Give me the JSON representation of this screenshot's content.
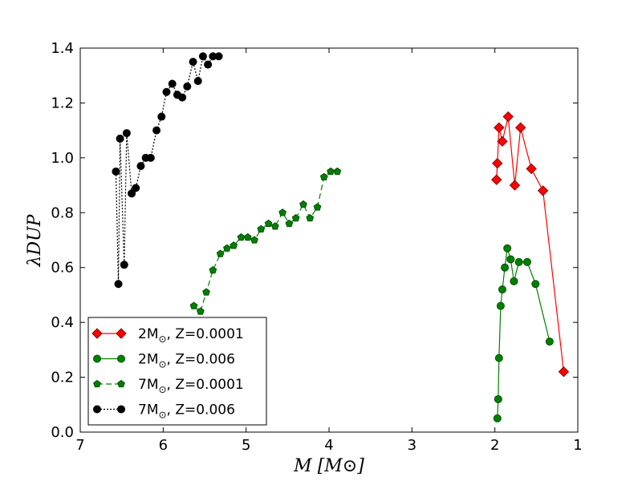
{
  "chart_data": {
    "type": "line",
    "title": "",
    "xlabel": "M [M⊙]",
    "ylabel": "λDUP",
    "xlim": [
      7,
      1
    ],
    "ylim": [
      0.0,
      1.4
    ],
    "xticks": [
      7,
      6,
      5,
      4,
      3,
      2,
      1
    ],
    "xtick_labels": [
      "7",
      "6",
      "5",
      "4",
      "3",
      "2",
      "1"
    ],
    "yticks": [
      0.0,
      0.2,
      0.4,
      0.6,
      0.8,
      1.0,
      1.2,
      1.4
    ],
    "ytick_labels": [
      "0.0",
      "0.2",
      "0.4",
      "0.6",
      "0.8",
      "1.0",
      "1.2",
      "1.4"
    ],
    "grid": false,
    "legend_position": "lower-left",
    "series": [
      {
        "name": "2M⊙, Z=0.0001",
        "label_mass": "2M",
        "label_metal": ", Z=0.0001",
        "color": "#ff0000",
        "edge_color": "#8b0000",
        "marker": "diamond",
        "line_style": "solid",
        "x": [
          1.98,
          1.97,
          1.95,
          1.91,
          1.84,
          1.76,
          1.69,
          1.56,
          1.42,
          1.17
        ],
        "y": [
          0.92,
          0.98,
          1.11,
          1.06,
          1.15,
          0.9,
          1.11,
          0.96,
          0.88,
          0.22
        ]
      },
      {
        "name": "2M⊙, Z=0.006",
        "label_mass": "2M",
        "label_metal": ", Z=0.006",
        "color": "#008000",
        "edge_color": "#004d00",
        "marker": "circle",
        "line_style": "solid",
        "x": [
          1.97,
          1.96,
          1.95,
          1.93,
          1.91,
          1.88,
          1.85,
          1.81,
          1.77,
          1.71,
          1.61,
          1.51,
          1.34
        ],
        "y": [
          0.05,
          0.12,
          0.27,
          0.46,
          0.52,
          0.6,
          0.67,
          0.63,
          0.55,
          0.62,
          0.62,
          0.54,
          0.33
        ]
      },
      {
        "name": "7M⊙, Z=0.0001",
        "label_mass": "7M",
        "label_metal": ", Z=0.0001",
        "color": "#008000",
        "edge_color": "#004d00",
        "marker": "pentagon",
        "line_style": "dashed",
        "x": [
          5.63,
          5.55,
          5.48,
          5.4,
          5.31,
          5.23,
          5.15,
          5.06,
          4.98,
          4.9,
          4.82,
          4.73,
          4.65,
          4.56,
          4.48,
          4.4,
          4.31,
          4.23,
          4.14,
          4.06,
          3.98,
          3.9
        ],
        "y": [
          0.46,
          0.44,
          0.51,
          0.59,
          0.65,
          0.67,
          0.68,
          0.71,
          0.71,
          0.7,
          0.74,
          0.76,
          0.75,
          0.8,
          0.76,
          0.78,
          0.83,
          0.78,
          0.82,
          0.93,
          0.95,
          0.95
        ]
      },
      {
        "name": "7M⊙, Z=0.006",
        "label_mass": "7M",
        "label_metal": ", Z=0.006",
        "color": "#000000",
        "edge_color": "#000000",
        "marker": "circle",
        "line_style": "dotted",
        "x": [
          6.57,
          6.54,
          6.52,
          6.47,
          6.44,
          6.38,
          6.33,
          6.27,
          6.21,
          6.15,
          6.08,
          6.02,
          5.96,
          5.89,
          5.83,
          5.77,
          5.71,
          5.64,
          5.58,
          5.52,
          5.46,
          5.4,
          5.33
        ],
        "y": [
          0.95,
          0.54,
          1.07,
          0.61,
          1.09,
          0.87,
          0.89,
          0.97,
          1.0,
          1.0,
          1.1,
          1.15,
          1.24,
          1.27,
          1.23,
          1.22,
          1.26,
          1.35,
          1.28,
          1.37,
          1.34,
          1.37,
          1.37
        ]
      }
    ]
  }
}
